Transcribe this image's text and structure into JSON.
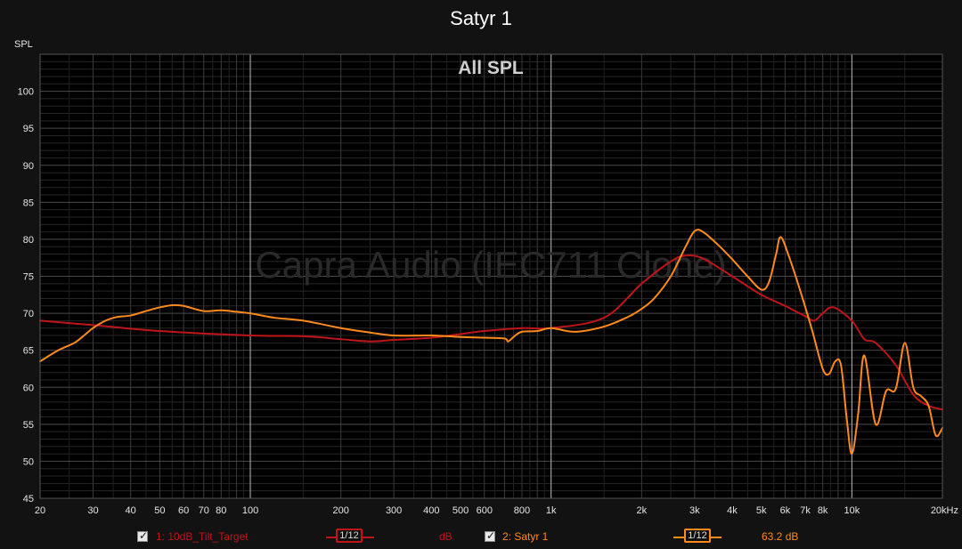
{
  "title": "Satyr 1",
  "watermark": "Capra Audio (IEC711 Clone)",
  "chart_data": {
    "type": "line",
    "title": "All SPL",
    "ylabel": "SPL",
    "xscale": "log",
    "xlim": [
      20,
      20000
    ],
    "ylim": [
      45,
      105
    ],
    "grid": true,
    "x_tick_labels": [
      {
        "v": 20,
        "t": "20"
      },
      {
        "v": 30,
        "t": "30"
      },
      {
        "v": 40,
        "t": "40"
      },
      {
        "v": 50,
        "t": "50"
      },
      {
        "v": 60,
        "t": "60"
      },
      {
        "v": 70,
        "t": "70"
      },
      {
        "v": 80,
        "t": "80"
      },
      {
        "v": 100,
        "t": "100"
      },
      {
        "v": 200,
        "t": "200"
      },
      {
        "v": 300,
        "t": "300"
      },
      {
        "v": 400,
        "t": "400"
      },
      {
        "v": 500,
        "t": "500"
      },
      {
        "v": 600,
        "t": "600"
      },
      {
        "v": 800,
        "t": "800"
      },
      {
        "v": 1000,
        "t": "1k"
      },
      {
        "v": 2000,
        "t": "2k"
      },
      {
        "v": 3000,
        "t": "3k"
      },
      {
        "v": 4000,
        "t": "4k"
      },
      {
        "v": 5000,
        "t": "5k"
      },
      {
        "v": 6000,
        "t": "6k"
      },
      {
        "v": 7000,
        "t": "7k"
      },
      {
        "v": 8000,
        "t": "8k"
      },
      {
        "v": 10000,
        "t": "10k"
      },
      {
        "v": 20000,
        "t": "20kHz"
      }
    ],
    "y_ticks": [
      50,
      55,
      60,
      65,
      70,
      75,
      80,
      85,
      90,
      95,
      100
    ],
    "series": [
      {
        "name": "1: 10dB_Tilt_Target",
        "color": "#c0141b",
        "x": [
          20,
          30,
          50,
          100,
          150,
          200,
          250,
          300,
          400,
          500,
          600,
          800,
          1000,
          1500,
          2000,
          2500,
          2800,
          3200,
          4000,
          5000,
          6000,
          7000,
          7500,
          8000,
          8700,
          10000,
          11000,
          12000,
          14000,
          16000,
          18000,
          20000
        ],
        "values": [
          69,
          68.4,
          67.6,
          67,
          66.9,
          66.5,
          66.2,
          66.4,
          66.7,
          67.2,
          67.6,
          68,
          68,
          69.4,
          74,
          77,
          77.8,
          77.4,
          75,
          72.5,
          71,
          69.6,
          69,
          70,
          70.8,
          69,
          66.5,
          66,
          63,
          59,
          57.5,
          57
        ]
      },
      {
        "name": "2: Satyr 1",
        "color": "#ff8a1c",
        "x": [
          20,
          23,
          26,
          28,
          30,
          33,
          36,
          40,
          45,
          50,
          55,
          60,
          70,
          80,
          90,
          100,
          120,
          150,
          200,
          250,
          300,
          400,
          500,
          600,
          700,
          720,
          760,
          800,
          900,
          1000,
          1200,
          1500,
          1800,
          2000,
          2200,
          2500,
          2800,
          3000,
          3200,
          3600,
          4000,
          4500,
          5000,
          5300,
          5600,
          5800,
          6200,
          6800,
          7400,
          8000,
          8400,
          8800,
          9200,
          9600,
          10000,
          10500,
          11000,
          12000,
          13000,
          14000,
          15000,
          16000,
          17000,
          18000,
          19000,
          20000
        ],
        "values": [
          63.5,
          65,
          66,
          67,
          68,
          69,
          69.5,
          69.7,
          70.3,
          70.8,
          71.1,
          71,
          70.3,
          70.4,
          70.2,
          70,
          69.4,
          69,
          68,
          67.4,
          67,
          67,
          66.8,
          66.7,
          66.6,
          66.2,
          67,
          67.5,
          67.6,
          68,
          67.5,
          68.2,
          69.5,
          70.6,
          72,
          75,
          79,
          81.1,
          81,
          79.2,
          77.3,
          75,
          73.2,
          74.2,
          78,
          80.3,
          77.5,
          72.5,
          67.5,
          62.5,
          61.8,
          63.5,
          63,
          56,
          51,
          56.5,
          64.3,
          55,
          59.5,
          59.8,
          66,
          60,
          58.8,
          57.5,
          53.5,
          54.5
        ]
      }
    ]
  },
  "legend": {
    "item1": {
      "label": "1: 10dB_Tilt_Target",
      "smoothing": "1/12",
      "value": "dB",
      "color": "#c0141b"
    },
    "item2": {
      "label": "2: Satyr 1",
      "smoothing": "1/12",
      "value": "63.2 dB",
      "color": "#ff8a1c"
    }
  }
}
